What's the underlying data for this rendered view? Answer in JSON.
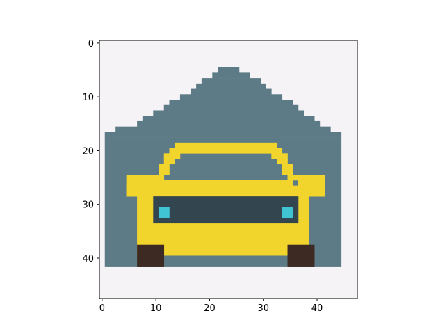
{
  "chart_data": {
    "type": "image",
    "title": "",
    "xlabel": "",
    "ylabel": "",
    "image_size": [
      48,
      48
    ],
    "xlim": [
      -0.5,
      47.5
    ],
    "ylim": [
      47.5,
      -0.5
    ],
    "xticks": [
      0,
      10,
      20,
      30,
      40
    ],
    "yticks": [
      0,
      10,
      20,
      30,
      40
    ],
    "x_tick_labels": [
      "0",
      "10",
      "20",
      "30",
      "40"
    ],
    "y_tick_labels": [
      "0",
      "10",
      "20",
      "30",
      "40"
    ],
    "grid": false,
    "legend": "none",
    "colors": {
      "background": "#f6f3f6",
      "garage": "#5d7b86",
      "car_body": "#f2d52c",
      "windshield_outline": "#f2d52c",
      "grille": "#33454e",
      "headlight": "#40c3d2",
      "tire": "#3d2a22"
    }
  }
}
